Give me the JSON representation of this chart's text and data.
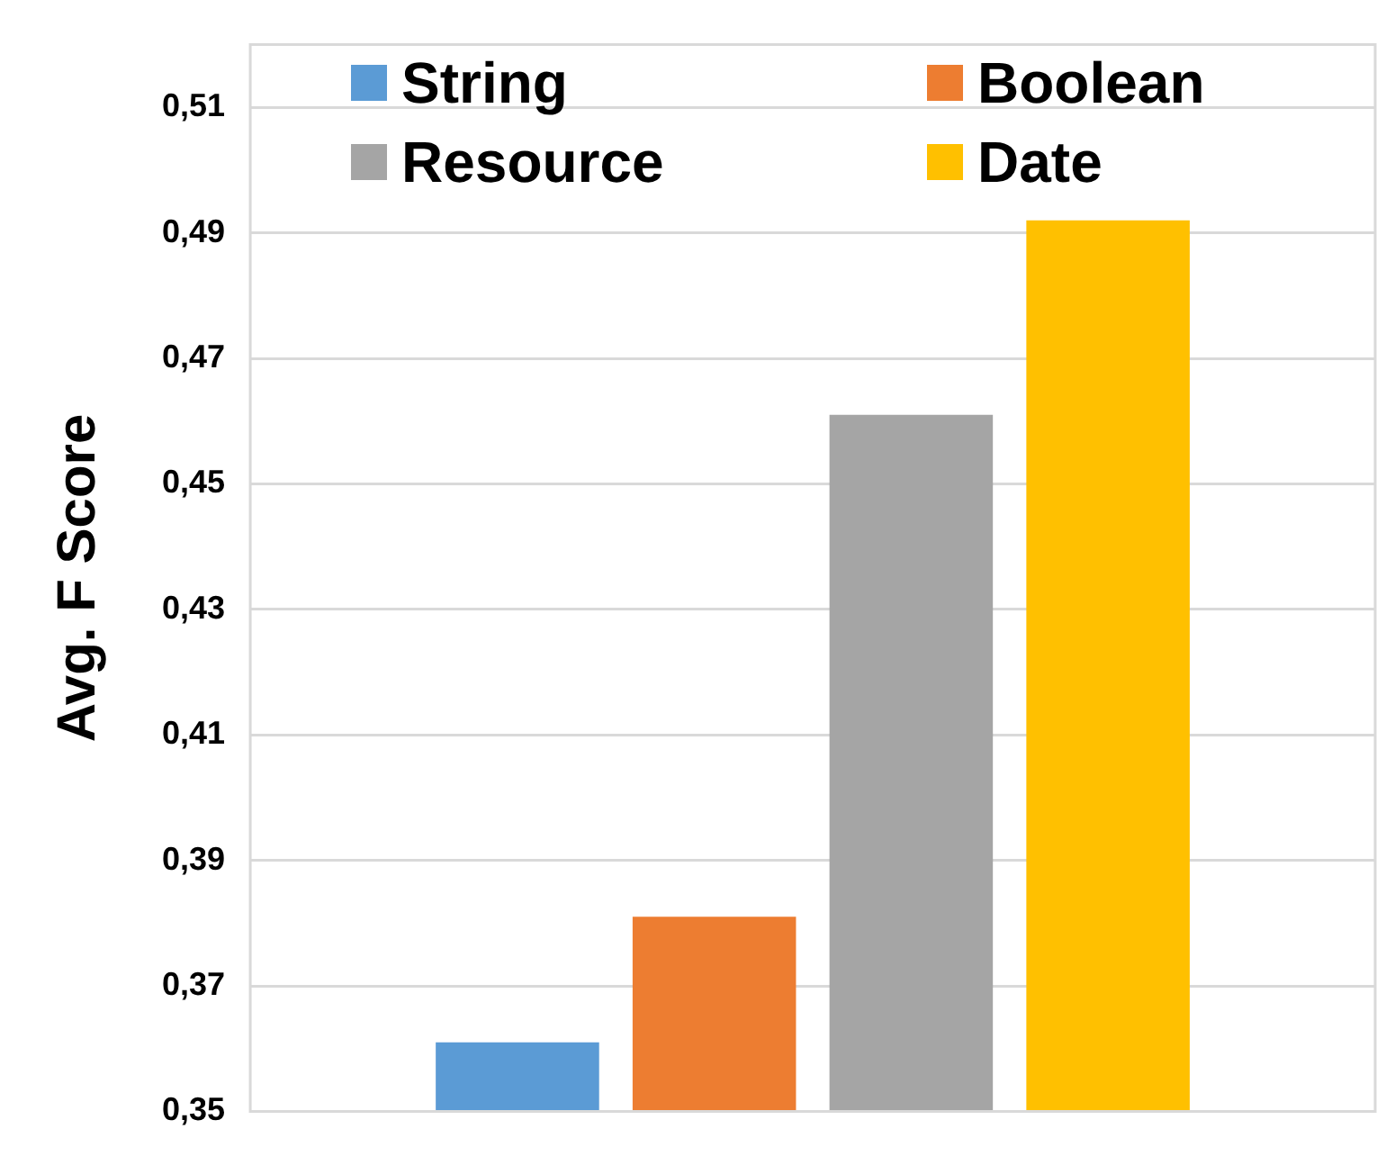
{
  "chart_data": {
    "type": "bar",
    "ylabel": "Avg. F Score",
    "categories": [
      null
    ],
    "series": [
      {
        "name": "String",
        "color": "#5b9bd5",
        "values": [
          0.361
        ]
      },
      {
        "name": "Boolean",
        "color": "#ed7d31",
        "values": [
          0.381
        ]
      },
      {
        "name": "Resource",
        "color": "#a5a5a5",
        "values": [
          0.461
        ]
      },
      {
        "name": "Date",
        "color": "#ffc000",
        "values": [
          0.492
        ]
      }
    ],
    "ylim": [
      0.35,
      0.52
    ],
    "yticks": [
      {
        "value": 0.35,
        "label": "0,35"
      },
      {
        "value": 0.37,
        "label": "0,37"
      },
      {
        "value": 0.39,
        "label": "0,39"
      },
      {
        "value": 0.41,
        "label": "0,41"
      },
      {
        "value": 0.43,
        "label": "0,43"
      },
      {
        "value": 0.45,
        "label": "0,45"
      },
      {
        "value": 0.47,
        "label": "0,47"
      },
      {
        "value": 0.49,
        "label": "0,49"
      },
      {
        "value": 0.51,
        "label": "0,51"
      }
    ],
    "grid": "y",
    "legend": "top",
    "tick_labels": "y"
  }
}
